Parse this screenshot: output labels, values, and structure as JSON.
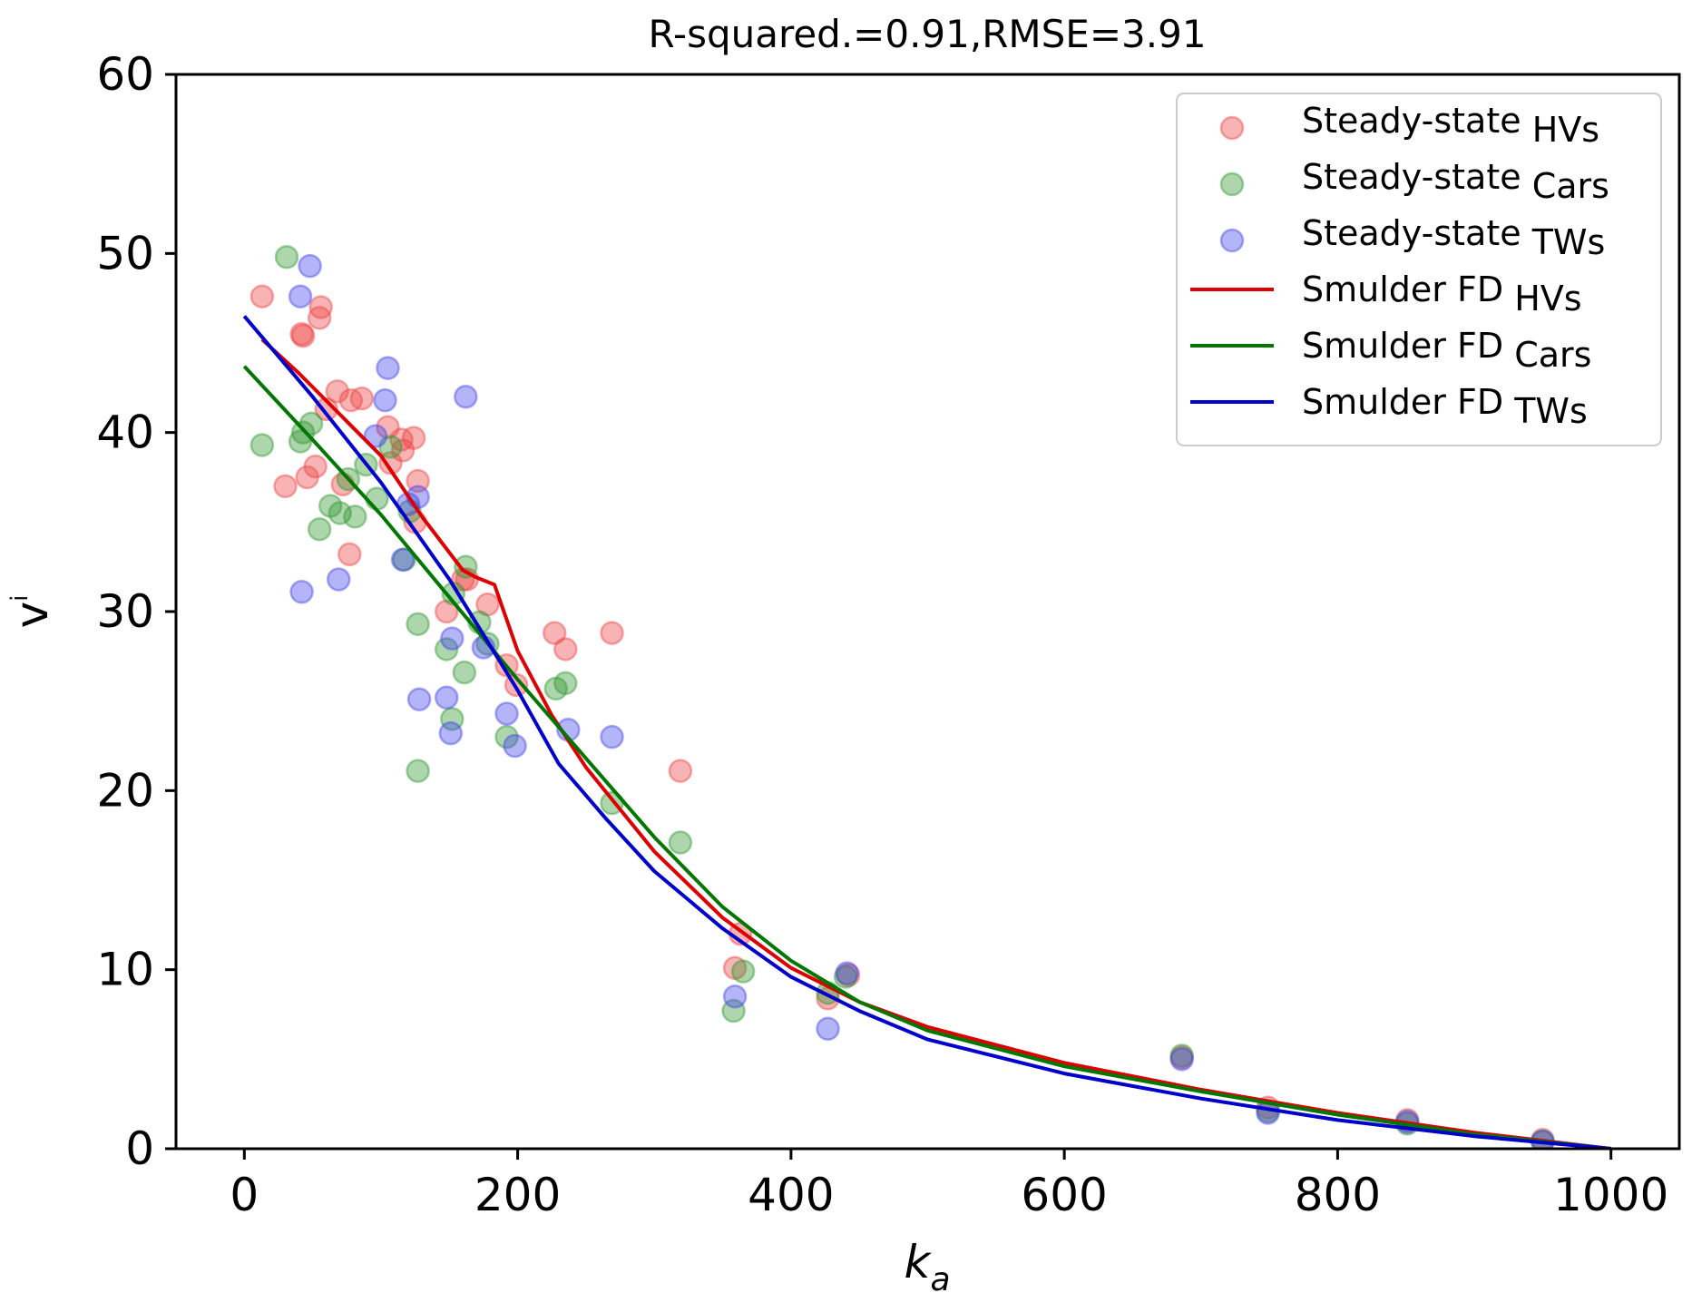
{
  "chart_data": {
    "type": "scatter",
    "title": "R-squared.=0.91,RMSE=3.91",
    "xlabel_main": "k",
    "xlabel_sub": "a",
    "ylabel_main": "v",
    "ylabel_sup": "i",
    "xlim": [
      -50,
      1050
    ],
    "ylim": [
      0,
      60
    ],
    "xticks": [
      0,
      200,
      400,
      600,
      800,
      1000
    ],
    "yticks": [
      0,
      10,
      20,
      30,
      40,
      50,
      60
    ],
    "xtick_labels": [
      "0",
      "200",
      "400",
      "600",
      "800",
      "1000"
    ],
    "ytick_labels": [
      "0",
      "10",
      "20",
      "30",
      "40",
      "50",
      "60"
    ],
    "legend_position": "top-right",
    "colors": {
      "hv": "#ee4444",
      "car": "#339933",
      "tw": "#4444ee",
      "hv_line": "#dd0000",
      "car_line": "#007700",
      "tw_line": "#0000cc"
    },
    "series": [
      {
        "name": "Steady-state HVs",
        "label_main": "Steady-state",
        "label_sub": "HVs",
        "kind": "scatter",
        "color_key": "hv",
        "points": [
          [
            13,
            47.6
          ],
          [
            42,
            45.5
          ],
          [
            43,
            45.4
          ],
          [
            55,
            46.4
          ],
          [
            56,
            47.0
          ],
          [
            30,
            37.0
          ],
          [
            46,
            37.5
          ],
          [
            52,
            38.1
          ],
          [
            60,
            41.3
          ],
          [
            68,
            42.3
          ],
          [
            72,
            37.1
          ],
          [
            78,
            41.8
          ],
          [
            86,
            41.9
          ],
          [
            77,
            33.2
          ],
          [
            105,
            40.3
          ],
          [
            107,
            38.3
          ],
          [
            115,
            39.6
          ],
          [
            116,
            39.0
          ],
          [
            124,
            39.7
          ],
          [
            127,
            37.3
          ],
          [
            125,
            35.0
          ],
          [
            148,
            30.0
          ],
          [
            160,
            31.8
          ],
          [
            163,
            31.8
          ],
          [
            178,
            30.4
          ],
          [
            192,
            27.0
          ],
          [
            199,
            25.9
          ],
          [
            227,
            28.8
          ],
          [
            235,
            27.9
          ],
          [
            269,
            28.8
          ],
          [
            319,
            21.1
          ],
          [
            363,
            12.0
          ],
          [
            359,
            10.1
          ],
          [
            427,
            8.4
          ],
          [
            442,
            9.7
          ],
          [
            686,
            5.1
          ],
          [
            749,
            2.3
          ],
          [
            851,
            1.6
          ],
          [
            950,
            0.5
          ]
        ]
      },
      {
        "name": "Steady-state Cars",
        "label_main": "Steady-state",
        "label_sub": "Cars",
        "kind": "scatter",
        "color_key": "car",
        "points": [
          [
            31,
            49.8
          ],
          [
            13,
            39.3
          ],
          [
            41,
            39.5
          ],
          [
            43,
            40.0
          ],
          [
            49,
            40.5
          ],
          [
            55,
            34.6
          ],
          [
            63,
            35.9
          ],
          [
            70,
            35.5
          ],
          [
            76,
            37.4
          ],
          [
            81,
            35.3
          ],
          [
            89,
            38.2
          ],
          [
            97,
            36.3
          ],
          [
            107,
            39.2
          ],
          [
            117,
            32.9
          ],
          [
            121,
            35.6
          ],
          [
            127,
            29.3
          ],
          [
            127,
            21.1
          ],
          [
            148,
            27.9
          ],
          [
            152,
            24.0
          ],
          [
            153,
            31.0
          ],
          [
            161,
            26.6
          ],
          [
            162,
            32.5
          ],
          [
            172,
            29.4
          ],
          [
            178,
            28.2
          ],
          [
            192,
            23.0
          ],
          [
            228,
            25.7
          ],
          [
            235,
            26.0
          ],
          [
            269,
            19.3
          ],
          [
            319,
            17.1
          ],
          [
            358,
            7.7
          ],
          [
            365,
            9.9
          ],
          [
            427,
            8.7
          ],
          [
            440,
            9.6
          ],
          [
            686,
            5.2
          ],
          [
            749,
            2.1
          ],
          [
            851,
            1.4
          ],
          [
            950,
            0.4
          ]
        ]
      },
      {
        "name": "Steady-state TWs",
        "label_main": "Steady-state",
        "label_sub": "TWs",
        "kind": "scatter",
        "color_key": "tw",
        "points": [
          [
            48,
            49.3
          ],
          [
            41,
            47.6
          ],
          [
            42,
            31.1
          ],
          [
            69,
            31.8
          ],
          [
            96,
            39.8
          ],
          [
            103,
            41.8
          ],
          [
            105,
            43.6
          ],
          [
            116,
            32.9
          ],
          [
            120,
            36.0
          ],
          [
            127,
            36.4
          ],
          [
            128,
            25.1
          ],
          [
            148,
            25.2
          ],
          [
            151,
            23.2
          ],
          [
            152,
            28.5
          ],
          [
            162,
            42.0
          ],
          [
            175,
            28.0
          ],
          [
            192,
            24.3
          ],
          [
            198,
            22.5
          ],
          [
            237,
            23.4
          ],
          [
            269,
            23.0
          ],
          [
            359,
            8.5
          ],
          [
            427,
            6.7
          ],
          [
            441,
            9.8
          ],
          [
            686,
            5.0
          ],
          [
            749,
            2.0
          ],
          [
            851,
            1.5
          ],
          [
            950,
            0.4
          ]
        ]
      },
      {
        "name": "Smulder FD HVs",
        "label_main": "Smulder FD",
        "label_sub": "HVs",
        "kind": "line",
        "color_key": "hv_line",
        "points": [
          [
            13,
            45.2
          ],
          [
            40,
            43.3
          ],
          [
            70,
            41.0
          ],
          [
            100,
            38.7
          ],
          [
            130,
            35.3
          ],
          [
            160,
            32.3
          ],
          [
            170,
            31.9
          ],
          [
            183,
            31.5
          ],
          [
            200,
            27.8
          ],
          [
            225,
            24.2
          ],
          [
            250,
            21.3
          ],
          [
            300,
            16.6
          ],
          [
            350,
            12.9
          ],
          [
            400,
            10.1
          ],
          [
            450,
            8.2
          ],
          [
            500,
            6.8
          ],
          [
            600,
            4.8
          ],
          [
            700,
            3.3
          ],
          [
            800,
            2.0
          ],
          [
            900,
            0.9
          ],
          [
            1000,
            0.0
          ]
        ]
      },
      {
        "name": "Smulder FD Cars",
        "label_main": "Smulder FD",
        "label_sub": "Cars",
        "kind": "line",
        "color_key": "car_line",
        "points": [
          [
            0,
            43.7
          ],
          [
            50,
            39.6
          ],
          [
            100,
            35.4
          ],
          [
            150,
            30.8
          ],
          [
            200,
            26.2
          ],
          [
            250,
            21.8
          ],
          [
            300,
            17.4
          ],
          [
            350,
            13.5
          ],
          [
            400,
            10.5
          ],
          [
            450,
            8.2
          ],
          [
            500,
            6.6
          ],
          [
            600,
            4.6
          ],
          [
            700,
            3.2
          ],
          [
            800,
            1.9
          ],
          [
            900,
            0.8
          ],
          [
            1000,
            0.0
          ]
        ]
      },
      {
        "name": "Smulder FD TWs",
        "label_main": "Smulder FD",
        "label_sub": "TWs",
        "kind": "line",
        "color_key": "tw_line",
        "points": [
          [
            0,
            46.5
          ],
          [
            50,
            42.0
          ],
          [
            100,
            37.2
          ],
          [
            150,
            31.8
          ],
          [
            200,
            25.6
          ],
          [
            230,
            21.5
          ],
          [
            265,
            18.4
          ],
          [
            300,
            15.5
          ],
          [
            350,
            12.3
          ],
          [
            400,
            9.6
          ],
          [
            450,
            7.7
          ],
          [
            500,
            6.1
          ],
          [
            600,
            4.2
          ],
          [
            700,
            2.8
          ],
          [
            800,
            1.6
          ],
          [
            900,
            0.7
          ],
          [
            1000,
            0.0
          ]
        ]
      }
    ]
  }
}
